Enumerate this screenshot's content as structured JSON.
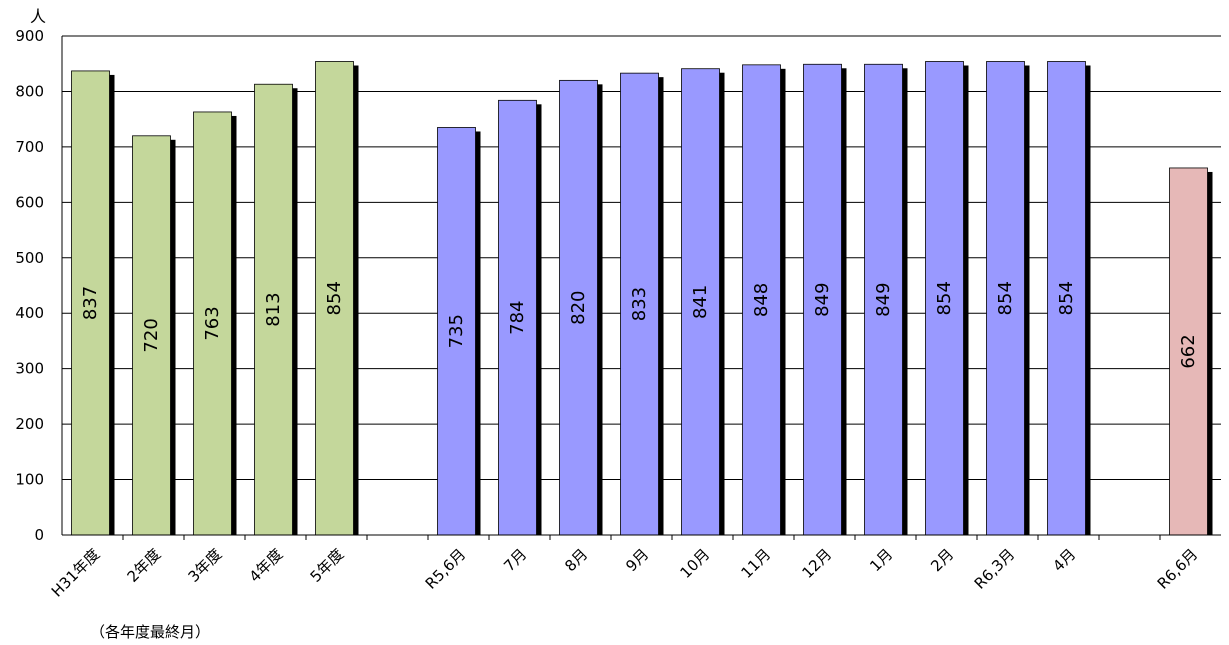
{
  "chart_data": {
    "type": "bar",
    "unit_label": "人",
    "ylim": [
      0,
      900
    ],
    "yticks": [
      0,
      100,
      200,
      300,
      400,
      500,
      600,
      700,
      800,
      900
    ],
    "grid": true,
    "footnote": "（各年度最終月）",
    "categories": [
      "H31年度",
      "2年度",
      "3年度",
      "4年度",
      "5年度",
      "R5,6月",
      "7月",
      "8月",
      "9月",
      "10月",
      "11月",
      "12月",
      "1月",
      "2月",
      "R6,3月",
      "4月",
      "R6,6月"
    ],
    "values": [
      837,
      720,
      763,
      813,
      854,
      735,
      784,
      820,
      833,
      841,
      848,
      849,
      849,
      854,
      854,
      854,
      662
    ],
    "groups": [
      "annual",
      "annual",
      "annual",
      "annual",
      "annual",
      "monthly",
      "monthly",
      "monthly",
      "monthly",
      "monthly",
      "monthly",
      "monthly",
      "monthly",
      "monthly",
      "monthly",
      "monthly",
      "current"
    ],
    "colors": {
      "annual": "#c4d79b",
      "monthly": "#9999ff",
      "current": "#e6b8b7",
      "shadow": "#000000",
      "grid": "#000000"
    }
  }
}
